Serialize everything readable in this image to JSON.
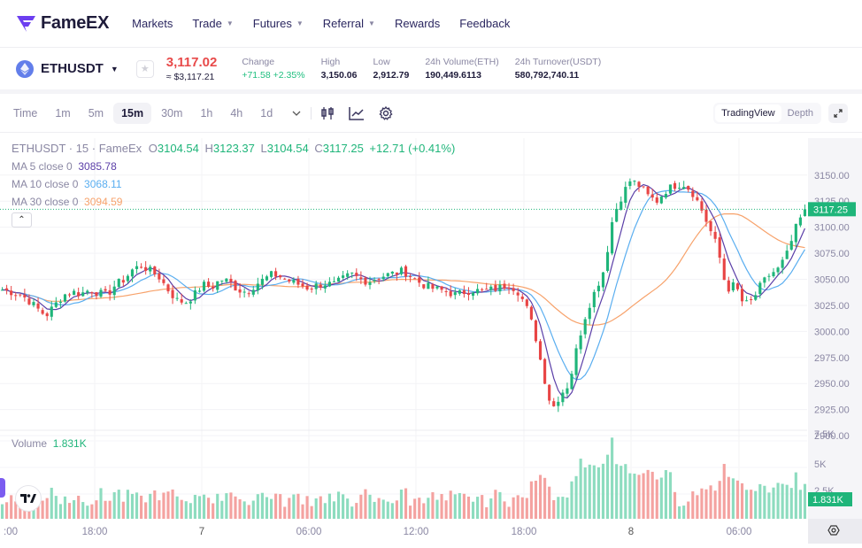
{
  "nav": {
    "logo": "FameEX",
    "items": [
      {
        "label": "Markets",
        "dropdown": false
      },
      {
        "label": "Trade",
        "dropdown": true
      },
      {
        "label": "Futures",
        "dropdown": true
      },
      {
        "label": "Referral",
        "dropdown": true
      },
      {
        "label": "Rewards",
        "dropdown": false
      },
      {
        "label": "Feedback",
        "dropdown": false
      }
    ]
  },
  "ticker": {
    "pair": "ETHUSDT",
    "price": "3,117.02",
    "price_usd": "≈ $3,117.21",
    "stats": [
      {
        "label": "Change",
        "value": "+71.58 +2.35%",
        "green": true
      },
      {
        "label": "High",
        "value": "3,150.06"
      },
      {
        "label": "Low",
        "value": "2,912.79"
      },
      {
        "label": "24h Volume(ETH)",
        "value": "190,449.6113"
      },
      {
        "label": "24h Turnover(USDT)",
        "value": "580,792,740.11"
      }
    ]
  },
  "toolbar": {
    "timeframes": [
      "Time",
      "1m",
      "5m",
      "15m",
      "30m",
      "1h",
      "4h",
      "1d"
    ],
    "active": "15m",
    "views": [
      "TradingView",
      "Depth"
    ],
    "active_view": "TradingView"
  },
  "chart": {
    "title": "ETHUSDT · 15 · FameEx",
    "ohlc": {
      "O": "3104.54",
      "H": "3123.37",
      "L": "3104.54",
      "C": "3117.25",
      "change": "+12.71 (+0.41%)"
    },
    "ma": [
      {
        "label": "MA 5 close 0",
        "value": "3085.78",
        "color": "#5b3fa8"
      },
      {
        "label": "MA 10 close 0",
        "value": "3068.11",
        "color": "#5aaef0"
      },
      {
        "label": "MA 30 close 0",
        "value": "3094.59",
        "color": "#f7a26b"
      }
    ],
    "last_price": "3117.25",
    "volume_label": "Volume",
    "volume_value": "1.831K",
    "colors": {
      "up": "#1fb57a",
      "down": "#e84545",
      "up_vol": "#8ddcbf",
      "down_vol": "#f4a2a0"
    }
  },
  "chart_data": {
    "type": "candlestick",
    "title": "ETHUSDT · 15 · FameEx",
    "y_ticks": [
      "3150.00",
      "3125.00",
      "3100.00",
      "3075.00",
      "3050.00",
      "3025.00",
      "3000.00",
      "2975.00",
      "2950.00",
      "2925.00",
      "2900.00"
    ],
    "volume_ticks": [
      "7.5K",
      "5K",
      "2.5K"
    ],
    "x_ticks": [
      ":00",
      "18:00",
      "7",
      "06:00",
      "12:00",
      "18:00",
      "8",
      "06:00"
    ],
    "ylim": [
      2895,
      3160
    ],
    "last_close": 3117.25,
    "last_volume": "1.831K",
    "series_shape": [
      3040,
      3038,
      3036,
      3030,
      3022,
      3015,
      3025,
      3035,
      3038,
      3036,
      3040,
      3037,
      3035,
      3045,
      3050,
      3060,
      3063,
      3058,
      3052,
      3040,
      3030,
      3028,
      3035,
      3045,
      3042,
      3050,
      3048,
      3040,
      3038,
      3045,
      3050,
      3055,
      3052,
      3048,
      3045,
      3042,
      3044,
      3046,
      3045,
      3050,
      3055,
      3050,
      3048,
      3052,
      3054,
      3056,
      3058,
      3052,
      3046,
      3042,
      3040,
      3038,
      3035,
      3038,
      3040,
      3038,
      3040,
      3042,
      3045,
      3040,
      3025,
      3000,
      2960,
      2925,
      2940,
      2950,
      2990,
      3020,
      3040,
      3060,
      3110,
      3130,
      3145,
      3140,
      3130,
      3125,
      3135,
      3140,
      3142,
      3135,
      3120,
      3100,
      3080,
      3040,
      3045,
      3025,
      3030,
      3045,
      3055,
      3060,
      3075,
      3100,
      3117
    ]
  }
}
